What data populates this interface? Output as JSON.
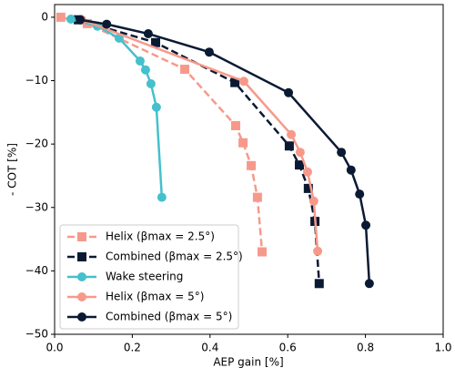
{
  "chart_data": {
    "type": "line",
    "xlabel": "AEP gain [%]",
    "ylabel": "- COT [%]",
    "xlim": [
      0,
      1.0
    ],
    "ylim": [
      -50,
      2
    ],
    "xticks": [
      {
        "value": 0,
        "label": "0.0"
      },
      0.2,
      0.4,
      0.6,
      0.8,
      {
        "value": 1.0,
        "label": "1.0"
      }
    ],
    "yticks": [
      0,
      {
        "value": -10,
        "label": "−10"
      },
      {
        "value": -20,
        "label": "−20"
      },
      {
        "value": -30,
        "label": "−30"
      },
      {
        "value": -40,
        "label": "−40"
      },
      {
        "value": -50,
        "label": "−50"
      }
    ],
    "grid": false,
    "legend": "lower left",
    "series": [
      {
        "name": "Helix (βmax = 2.5°)",
        "color": "#f7998a",
        "linestyle": "dashed",
        "marker": "square",
        "x": [
          0.016,
          0.084,
          0.335,
          0.466,
          0.485,
          0.506,
          0.522,
          0.534
        ],
        "values": [
          0,
          -1.0,
          -8.2,
          -17.1,
          -19.8,
          -23.4,
          -28.4,
          -37.0
        ]
      },
      {
        "name": "Combined (βmax = 2.5°)",
        "color": "#0b1a33",
        "linestyle": "dashed",
        "marker": "square",
        "x": [
          0.061,
          0.26,
          0.464,
          0.604,
          0.63,
          0.653,
          0.67,
          0.681
        ],
        "values": [
          -0.4,
          -4.0,
          -10.3,
          -20.3,
          -23.3,
          -27.0,
          -32.2,
          -42.0
        ]
      },
      {
        "name": "Wake steering",
        "color": "#45c0cc",
        "linestyle": "solid",
        "marker": "circle",
        "x": [
          0.042,
          0.11,
          0.166,
          0.22,
          0.234,
          0.248,
          0.262,
          0.276
        ],
        "values": [
          -0.3,
          -1.4,
          -3.3,
          -6.9,
          -8.3,
          -10.5,
          -14.2,
          -28.4
        ]
      },
      {
        "name": "Helix (βmax = 5°)",
        "color": "#f7998a",
        "linestyle": "solid",
        "marker": "circle",
        "x": [
          0.07,
          0.487,
          0.609,
          0.632,
          0.651,
          0.667,
          0.677
        ],
        "values": [
          -0.4,
          -10.1,
          -18.5,
          -21.3,
          -24.4,
          -29.0,
          -36.9
        ]
      },
      {
        "name": "Combined (βmax = 5°)",
        "color": "#0b1a33",
        "linestyle": "solid",
        "marker": "circle",
        "x": [
          0.066,
          0.134,
          0.241,
          0.398,
          0.602,
          0.738,
          0.763,
          0.785,
          0.801,
          0.81
        ],
        "values": [
          -0.4,
          -1.1,
          -2.6,
          -5.5,
          -11.9,
          -21.3,
          -24.1,
          -27.9,
          -32.8,
          -42.0
        ]
      }
    ]
  }
}
